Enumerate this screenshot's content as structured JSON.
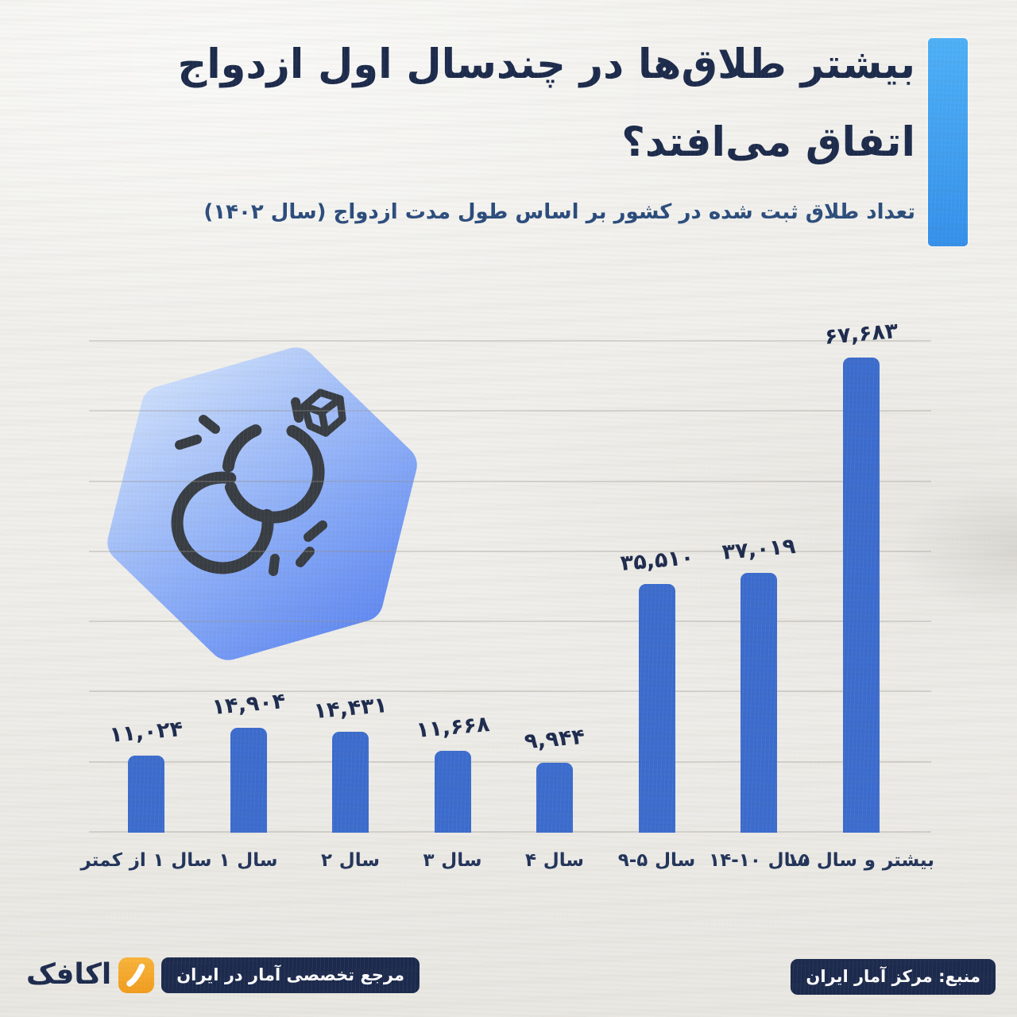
{
  "page": {
    "background_color": "#efeeea"
  },
  "header": {
    "title_line1": "بیشتر طلاق‌ها در چندسال اول ازدواج",
    "title_line2": "اتفاق می‌افتد؟",
    "subtitle": "تعداد طلاق ثبت شده در کشور بر اساس طول مدت ازدواج (سال ۱۴۰۲)",
    "accent_color_top": "#4db0f7",
    "accent_color_bottom": "#3590ea",
    "title_color": "#1c2a4b",
    "subtitle_color": "#2b4c7c"
  },
  "hexagon_icon": {
    "name": "interlocked-wedding-rings-with-diamond",
    "gradient_from": "#cfe1fc",
    "gradient_to": "#5b84f0",
    "ring_color": "#383d43"
  },
  "chart_data": {
    "type": "bar",
    "title": "تعداد طلاق ثبت شده در کشور بر اساس طول مدت ازدواج (سال ۱۴۰۲)",
    "categories": [
      "کمتر از ۱ سال",
      "۱ سال",
      "۲ سال",
      "۳ سال",
      "۴ سال",
      "۵-۹ سال",
      "۱۰-۱۴ سال",
      "۱۵ سال و بیشتر"
    ],
    "values": [
      11024,
      14904,
      14431,
      11668,
      9944,
      35510,
      37019,
      67683
    ],
    "value_labels": [
      "۱۱,۰۲۴",
      "۱۴,۹۰۴",
      "۱۴,۴۳۱",
      "۱۱,۶۶۸",
      "۹,۹۴۴",
      "۳۵,۵۱۰",
      "۳۷,۰۱۹",
      "۶۷,۶۸۳"
    ],
    "axis_labels_visual": [
      "کمتر از ۱ سال",
      "۱ سال",
      "۲ سال",
      "۳ سال",
      "۴ سال",
      "۹-۵ سال",
      "۱۴-۱۰ سال",
      "۱۵ سال و بیشتر"
    ],
    "xlabel": "",
    "ylabel": "",
    "ylim": [
      0,
      70000
    ],
    "gridline_step": 10000,
    "grid": true,
    "legend": false,
    "bar_color": "#3c6ccd"
  },
  "footer": {
    "source_badge": "منبع: مرکز آمار ایران",
    "tagline_badge": "مرجع تخصصی آمار در ایران",
    "logo_text": "اکافک",
    "badge_color": "#1c2a4d",
    "logo_tile_color": "#f6a82a"
  }
}
